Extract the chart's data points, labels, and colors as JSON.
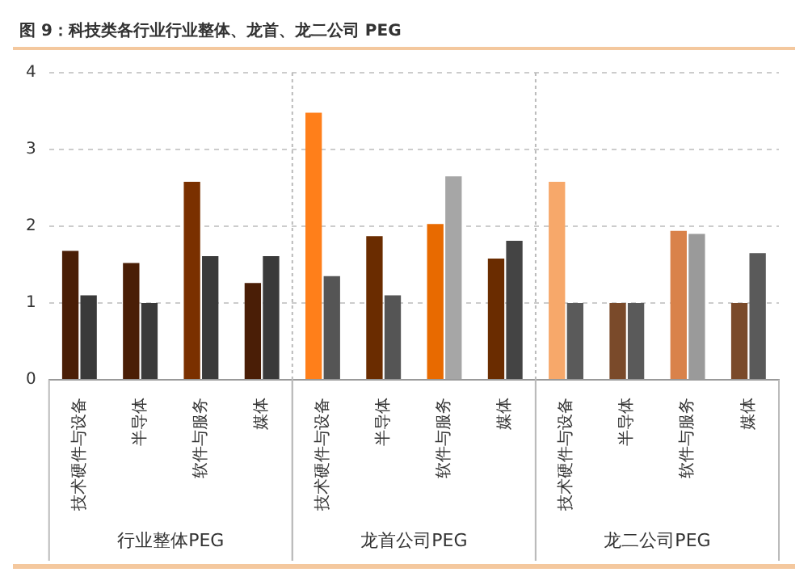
{
  "chart_data": {
    "type": "bar",
    "title": "图 9：科技类各行业行业整体、龙首、龙二公司 PEG",
    "categories": [
      "技术硬件与设备",
      "半导体",
      "软件与服务",
      "媒体",
      "技术硬件与设备",
      "半导体",
      "软件与服务",
      "媒体",
      "技术硬件与设备",
      "半导体",
      "软件与服务",
      "媒体"
    ],
    "series": [
      {
        "colors": [
          "#4a1e06",
          "#4a1e06",
          "#7a3000",
          "#4a1e06",
          "#ff7f1a",
          "#6a2c00",
          "#e86a00",
          "#6a2c00",
          "#f7a86a",
          "#7a4a2a",
          "#d9824a",
          "#7a4a2a"
        ],
        "values": [
          1.68,
          1.52,
          2.58,
          1.26,
          3.48,
          1.87,
          2.03,
          1.58,
          2.58,
          1.0,
          1.94,
          1.0
        ]
      },
      {
        "colors": [
          "#3a3a3a",
          "#3a3a3a",
          "#3a3a3a",
          "#3a3a3a",
          "#555555",
          "#555555",
          "#a6a6a6",
          "#444444",
          "#5a5a5a",
          "#5a5a5a",
          "#9a9a9a",
          "#5a5a5a"
        ],
        "values": [
          1.1,
          1.0,
          1.61,
          1.61,
          1.35,
          1.1,
          2.65,
          1.81,
          1.0,
          1.0,
          1.9,
          1.65
        ]
      }
    ],
    "annotations": [
      "行业整体PEG",
      "龙首公司PEG",
      "龙二公司PEG"
    ],
    "ylim": [
      0,
      4
    ],
    "yticks": [
      0,
      1,
      2,
      3,
      4
    ],
    "grid": "y",
    "legend": false
  }
}
